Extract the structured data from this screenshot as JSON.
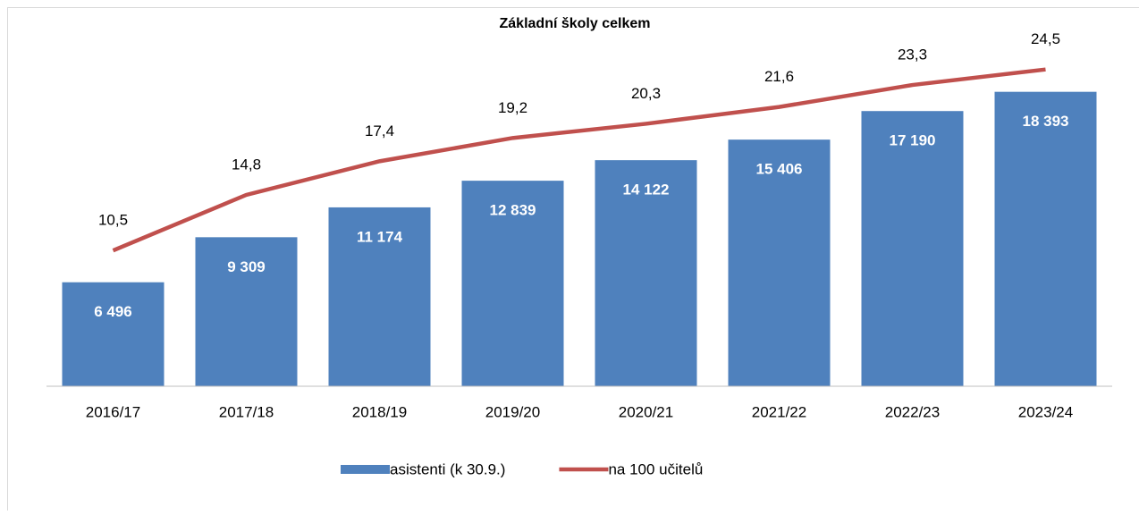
{
  "chart_data": {
    "type": "bar_line",
    "title": "Základní školy celkem",
    "categories": [
      "2016/17",
      "2017/18",
      "2018/19",
      "2019/20",
      "2020/21",
      "2021/22",
      "2022/23",
      "2023/24"
    ],
    "series": [
      {
        "name": "asistenti (k 30.9.)",
        "type": "bar",
        "color": "#4f81bd",
        "values": [
          6496,
          9309,
          11174,
          12839,
          14122,
          15406,
          17190,
          18393
        ],
        "value_labels": [
          "6 496",
          "9 309",
          "11 174",
          "12 839",
          "14 122",
          "15 406",
          "17 190",
          "18 393"
        ]
      },
      {
        "name": "na 100 učitelů",
        "type": "line",
        "axis": "y2",
        "color": "#c0504d",
        "values": [
          10.5,
          14.8,
          17.4,
          19.2,
          20.3,
          21.6,
          23.3,
          24.5
        ],
        "value_labels": [
          "10,5",
          "14,8",
          "17,4",
          "19,2",
          "20,3",
          "21,6",
          "23,3",
          "24,5"
        ]
      }
    ],
    "ylim": [
      0,
      21000
    ],
    "y2lim": [
      0,
      26
    ],
    "legend": "bottom"
  }
}
